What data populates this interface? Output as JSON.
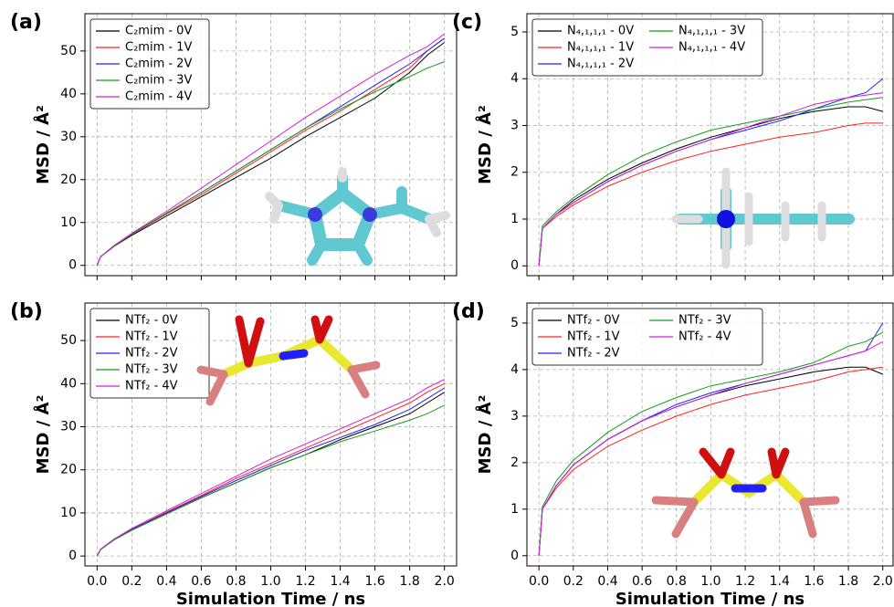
{
  "chart_data": [
    {
      "type": "line",
      "label": "(a)",
      "ylabel": "MSD / Å²",
      "x": [
        0,
        0.02,
        0.1,
        0.2,
        0.4,
        0.6,
        0.8,
        1.0,
        1.2,
        1.4,
        1.6,
        1.8,
        1.9,
        2.0
      ],
      "series": [
        {
          "name": "C₂mim - 0V",
          "color": "#000000",
          "values": [
            0,
            2,
            4.5,
            7,
            11.5,
            16,
            20.5,
            25,
            30,
            34.5,
            39,
            45,
            49,
            52
          ]
        },
        {
          "name": "C₂mim - 1V",
          "color": "#ff2020",
          "values": [
            0,
            2,
            4.6,
            7.2,
            12,
            16.5,
            21.5,
            26.5,
            31.5,
            36,
            41,
            46,
            50,
            53
          ]
        },
        {
          "name": "C₂mim - 2V",
          "color": "#2020ff",
          "values": [
            0,
            2,
            4.6,
            7.3,
            12.2,
            17,
            22,
            27,
            32,
            37,
            42,
            47,
            50,
            53
          ]
        },
        {
          "name": "C₂mim - 3V",
          "color": "#1a9a1a",
          "values": [
            0,
            2,
            4.6,
            7.3,
            12.2,
            17,
            22,
            27,
            32,
            36.5,
            40.5,
            44,
            46,
            47.5
          ]
        },
        {
          "name": "C₂mim - 4V",
          "color": "#d020d0",
          "values": [
            0,
            2,
            4.7,
            7.5,
            12.6,
            18,
            23.5,
            29,
            34.5,
            39.5,
            44.5,
            49,
            51,
            54
          ]
        }
      ],
      "xlim": [
        -0.07,
        2.07
      ],
      "ylim": [
        -2.4,
        58.7
      ],
      "xticks": [
        0,
        0.2,
        0.4,
        0.6,
        0.8,
        1,
        1.2,
        1.4,
        1.6,
        1.8,
        2
      ],
      "xtick_labels": false,
      "yticks": [
        0,
        10,
        20,
        30,
        40,
        50
      ],
      "grid": true,
      "legend": "upper left",
      "legend_columns": 1
    },
    {
      "type": "line",
      "label": "(b)",
      "ylabel": "MSD / Å²",
      "xlabel": "Simulation Time / ns",
      "x": [
        0,
        0.02,
        0.1,
        0.2,
        0.4,
        0.6,
        0.8,
        1.0,
        1.2,
        1.4,
        1.6,
        1.8,
        1.9,
        2.0
      ],
      "series": [
        {
          "name": "NTf₂ - 0V",
          "color": "#000000",
          "values": [
            0,
            1.5,
            3.8,
            6,
            9.8,
            13.5,
            17,
            20.5,
            23.5,
            27,
            30,
            33,
            35.5,
            38
          ]
        },
        {
          "name": "NTf₂ - 1V",
          "color": "#ff2020",
          "values": [
            0,
            1.5,
            3.9,
            6.2,
            10.2,
            14,
            18,
            21.5,
            25,
            28.5,
            32,
            35.5,
            38,
            40
          ]
        },
        {
          "name": "NTf₂ - 2V",
          "color": "#2020ff",
          "values": [
            0,
            1.5,
            3.9,
            6.2,
            10,
            13.8,
            17.5,
            21,
            24.5,
            27.5,
            30.5,
            34,
            36.5,
            39
          ]
        },
        {
          "name": "NTf₂ - 3V",
          "color": "#1a9a1a",
          "values": [
            0,
            1.5,
            3.8,
            6,
            9.8,
            13.5,
            17,
            20.5,
            23.5,
            26.5,
            29,
            31.5,
            33,
            35
          ]
        },
        {
          "name": "NTf₂ - 4V",
          "color": "#d020d0",
          "values": [
            0,
            1.6,
            4,
            6.4,
            10.5,
            14.5,
            18.5,
            22.5,
            26,
            29.5,
            33,
            36.5,
            39,
            41
          ]
        }
      ],
      "xlim": [
        -0.07,
        2.07
      ],
      "ylim": [
        -2.3,
        58.7
      ],
      "xticks": [
        {
          "value": 0,
          "label": "0.0"
        },
        0.2,
        0.4,
        0.6,
        0.8,
        {
          "value": 1,
          "label": "1.0"
        },
        1.2,
        1.4,
        1.6,
        1.8,
        {
          "value": 2,
          "label": "2.0"
        }
      ],
      "xtick_labels": true,
      "yticks": [
        0,
        10,
        20,
        30,
        40,
        50
      ],
      "grid": true,
      "legend": "upper left",
      "legend_columns": 1
    },
    {
      "type": "line",
      "label": "(c)",
      "ylabel": "MSD / Å²",
      "x": [
        0,
        0.02,
        0.1,
        0.2,
        0.4,
        0.6,
        0.8,
        1.0,
        1.2,
        1.4,
        1.6,
        1.8,
        1.9,
        2.0
      ],
      "series": [
        {
          "name": "N₄,₁,₁,₁ - 0V",
          "color": "#000000",
          "values": [
            0,
            0.8,
            1.1,
            1.4,
            1.85,
            2.2,
            2.5,
            2.75,
            2.95,
            3.15,
            3.3,
            3.4,
            3.4,
            3.3
          ]
        },
        {
          "name": "N₄,₁,₁,₁ - 1V",
          "color": "#ff2020",
          "values": [
            0,
            0.8,
            1.05,
            1.3,
            1.7,
            2.0,
            2.25,
            2.45,
            2.6,
            2.75,
            2.85,
            3.0,
            3.05,
            3.05
          ]
        },
        {
          "name": "N₄,₁,₁,₁ - 2V",
          "color": "#2020ff",
          "values": [
            0,
            0.8,
            1.1,
            1.35,
            1.8,
            2.15,
            2.45,
            2.7,
            2.9,
            3.1,
            3.35,
            3.6,
            3.7,
            4.0
          ]
        },
        {
          "name": "N₄,₁,₁,₁ - 3V",
          "color": "#1a9a1a",
          "values": [
            0,
            0.85,
            1.15,
            1.45,
            1.95,
            2.35,
            2.65,
            2.9,
            3.05,
            3.2,
            3.35,
            3.5,
            3.55,
            3.6
          ]
        },
        {
          "name": "N₄,₁,₁,₁ - 4V",
          "color": "#d020d0",
          "values": [
            0,
            0.8,
            1.1,
            1.35,
            1.8,
            2.15,
            2.45,
            2.7,
            2.95,
            3.2,
            3.45,
            3.6,
            3.65,
            3.7
          ]
        }
      ],
      "xlim": [
        -0.07,
        2.06
      ],
      "ylim": [
        -0.21,
        5.39
      ],
      "xticks": [
        0,
        0.2,
        0.4,
        0.6,
        0.8,
        1,
        1.2,
        1.4,
        1.6,
        1.8,
        2
      ],
      "xtick_labels": false,
      "yticks": [
        0,
        1,
        2,
        3,
        4,
        5
      ],
      "grid": true,
      "legend": "upper left",
      "legend_columns": 2
    },
    {
      "type": "line",
      "label": "(d)",
      "ylabel": "MSD / Å²",
      "xlabel": "Simulation Time / ns",
      "x": [
        0,
        0.02,
        0.1,
        0.2,
        0.4,
        0.6,
        0.8,
        1.0,
        1.2,
        1.4,
        1.6,
        1.8,
        1.9,
        2.0
      ],
      "series": [
        {
          "name": "NTf₂ - 0V",
          "color": "#000000",
          "values": [
            0,
            1.0,
            1.5,
            1.95,
            2.5,
            2.9,
            3.2,
            3.45,
            3.65,
            3.8,
            3.95,
            4.05,
            4.05,
            3.9
          ]
        },
        {
          "name": "NTf₂ - 1V",
          "color": "#ff2020",
          "values": [
            0,
            1.0,
            1.45,
            1.85,
            2.35,
            2.7,
            3.0,
            3.25,
            3.45,
            3.6,
            3.75,
            3.95,
            4.0,
            4.05
          ]
        },
        {
          "name": "NTf₂ - 2V",
          "color": "#2020ff",
          "values": [
            0,
            1.0,
            1.5,
            1.95,
            2.5,
            2.9,
            3.25,
            3.5,
            3.7,
            3.9,
            4.1,
            4.3,
            4.4,
            5.0
          ]
        },
        {
          "name": "NTf₂ - 3V",
          "color": "#1a9a1a",
          "values": [
            0,
            1.05,
            1.6,
            2.05,
            2.65,
            3.1,
            3.4,
            3.65,
            3.8,
            3.95,
            4.15,
            4.5,
            4.6,
            4.8
          ]
        },
        {
          "name": "NTf₂ - 4V",
          "color": "#d020d0",
          "values": [
            0,
            1.0,
            1.5,
            1.95,
            2.5,
            2.9,
            3.2,
            3.45,
            3.7,
            3.9,
            4.1,
            4.3,
            4.4,
            4.6
          ]
        }
      ],
      "xlim": [
        -0.07,
        2.06
      ],
      "ylim": [
        -0.22,
        5.43
      ],
      "xticks": [
        {
          "value": 0,
          "label": "0.0"
        },
        0.2,
        0.4,
        0.6,
        0.8,
        {
          "value": 1,
          "label": "1.0"
        },
        1.2,
        1.4,
        1.6,
        1.8,
        {
          "value": 2,
          "label": "2.0"
        }
      ],
      "xtick_labels": true,
      "yticks": [
        0,
        1,
        2,
        3,
        4,
        5
      ],
      "grid": true,
      "legend": "upper left",
      "legend_columns": 2
    }
  ]
}
